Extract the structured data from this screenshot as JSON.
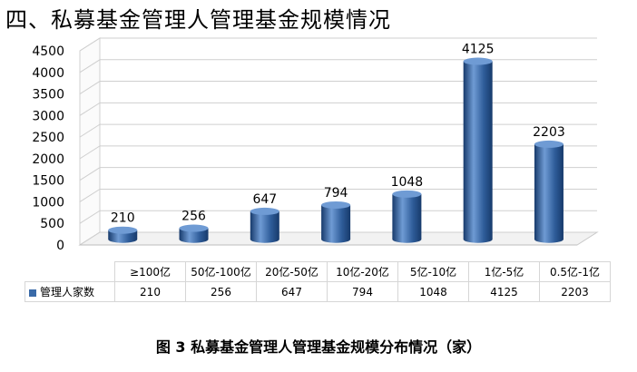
{
  "section_title": "四、私募基金管理人管理基金规模情况",
  "figure_caption": "图 3  私募基金管理人管理基金规模分布情况（家）",
  "chart_data": {
    "type": "bar",
    "title": "",
    "xlabel": "",
    "ylabel": "",
    "ylim": [
      0,
      4500
    ],
    "yticks": [
      0,
      500,
      1000,
      1500,
      2000,
      2500,
      3000,
      3500,
      4000,
      4500
    ],
    "grid": true,
    "legend": "data-table",
    "categories": [
      "≥100亿",
      "50亿-100亿",
      "20亿-50亿",
      "10亿-20亿",
      "5亿-10亿",
      "1亿-5亿",
      "0.5亿-1亿"
    ],
    "series": [
      {
        "name": "管理人家数",
        "values": [
          210,
          256,
          647,
          794,
          1048,
          4125,
          2203
        ]
      }
    ],
    "colors": {
      "bar": "#2f5d9a",
      "bar_light": "#6f9bd4",
      "bar_dark": "#173a6b",
      "grid": "#cfcfcf"
    }
  }
}
